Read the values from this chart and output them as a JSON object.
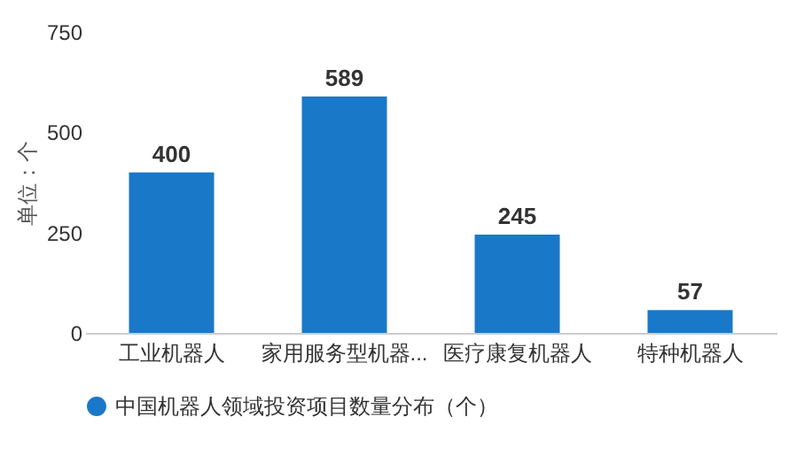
{
  "chart_data": {
    "type": "bar",
    "ylabel": "单位：个",
    "categories": [
      "工业机器人",
      "家用服务型机器...",
      "医疗康复机器人",
      "特种机器人"
    ],
    "series": [
      {
        "name": "中国机器人领域投资项目数量分布（个）",
        "color": "#1a78c8",
        "values": [
          400,
          589,
          245,
          57
        ]
      }
    ],
    "ylim": [
      0,
      750
    ],
    "yticks": [
      0,
      250,
      500,
      750
    ],
    "data_labels": true,
    "legend": "bottom"
  }
}
